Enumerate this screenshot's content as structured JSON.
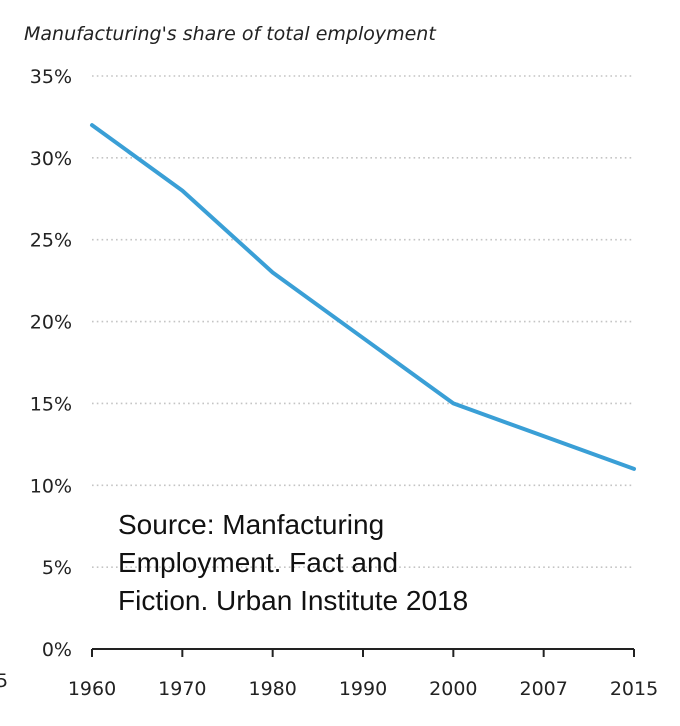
{
  "chart_data": {
    "type": "line",
    "title": "Manufacturing's share of total employment",
    "xlabel": "",
    "ylabel": "",
    "categories": [
      "1960",
      "1970",
      "1980",
      "1990",
      "2000",
      "2007",
      "2015"
    ],
    "series": [
      {
        "values": [
          32,
          28,
          23,
          19,
          15,
          13,
          11
        ],
        "color": "#3a9fd6"
      }
    ],
    "ylim": [
      0,
      35
    ],
    "y_ticks": [
      0,
      5,
      10,
      15,
      20,
      25,
      30,
      35
    ],
    "y_tick_labels": [
      "0%",
      "5%",
      "10%",
      "15%",
      "20%",
      "25%",
      "30%",
      "35%"
    ],
    "grid": true,
    "legend": "none"
  },
  "annotation": {
    "lines": [
      "Source: Manfacturing",
      "Employment. Fact and",
      "Fiction. Urban Institute 2018"
    ]
  },
  "edge_fragment": "5"
}
